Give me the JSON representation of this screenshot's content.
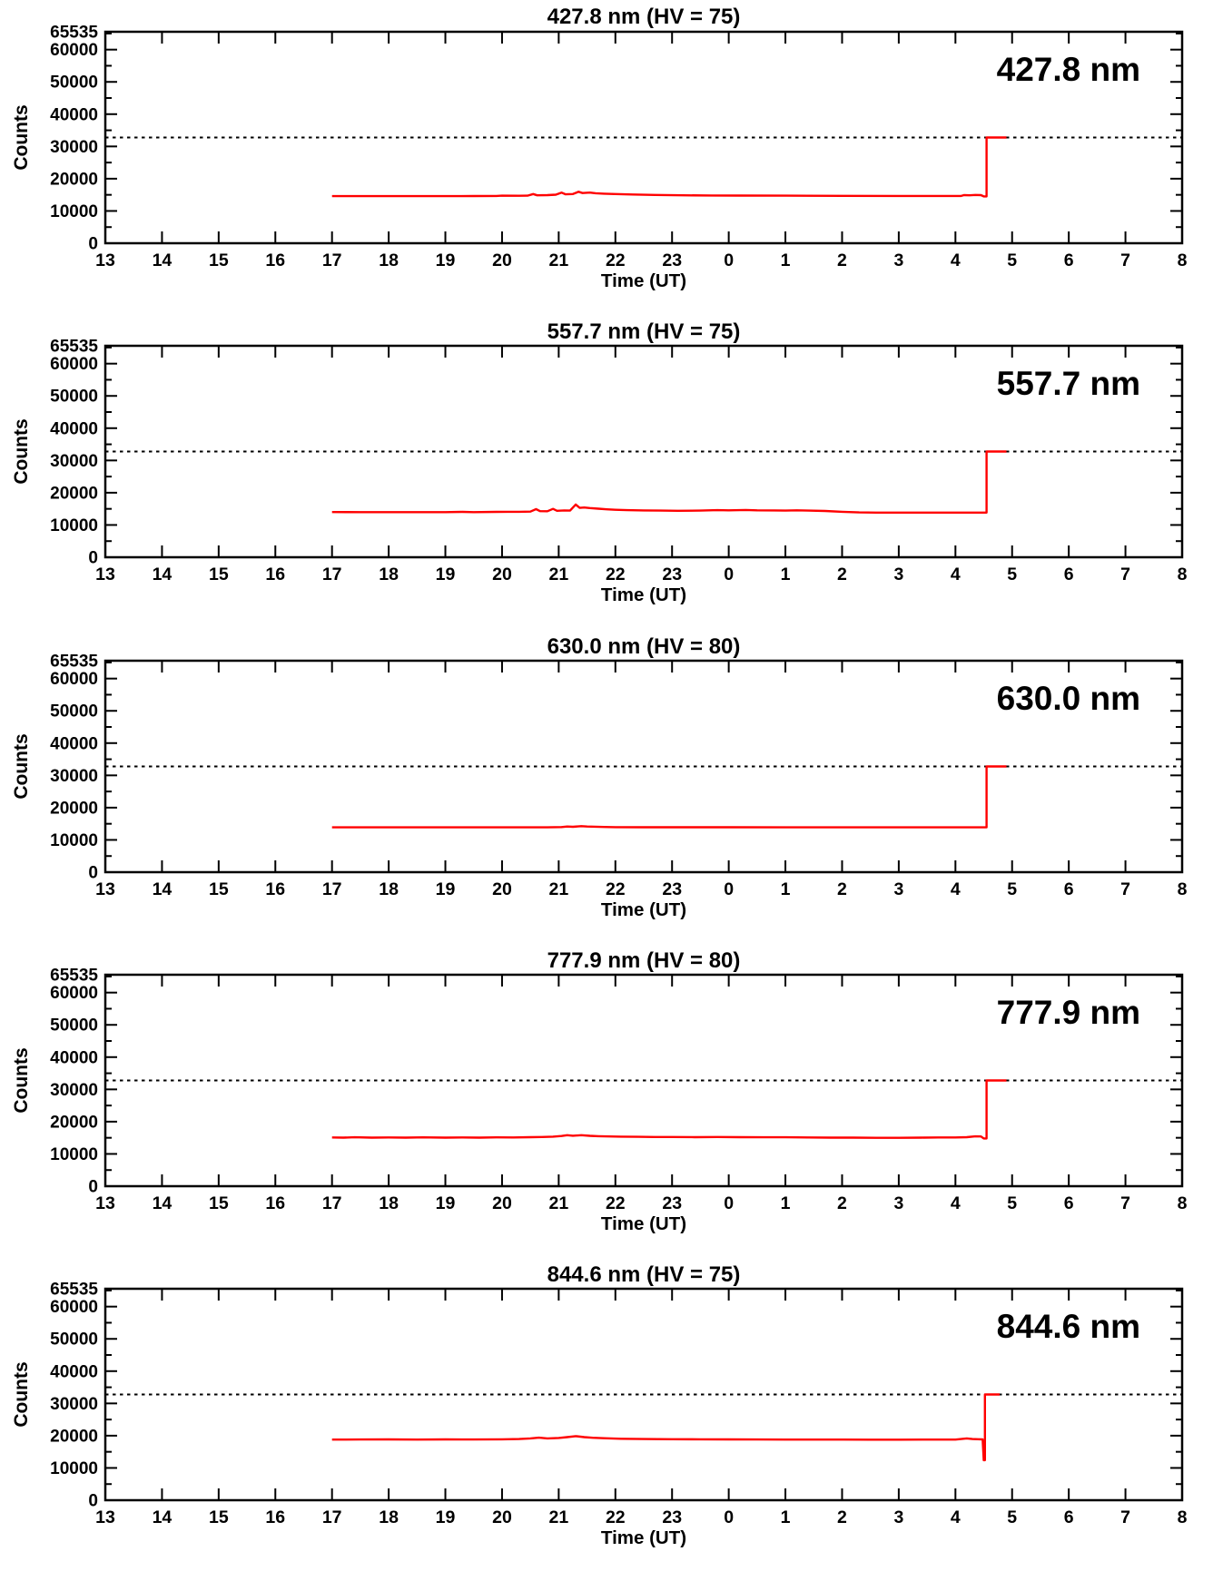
{
  "figure": {
    "description": "Five stacked photometer raw-count time-series panels",
    "background": "#ffffff",
    "axis_color": "#000000"
  },
  "chart_data": {
    "type": "line",
    "common": {
      "xlabel": "Time (UT)",
      "ylabel": "Counts",
      "ylim": [
        0,
        65535
      ],
      "y_major_ticks": [
        0,
        10000,
        20000,
        30000,
        40000,
        50000,
        60000,
        65535
      ],
      "y_major_tick_labels": [
        "0",
        "10000",
        "20000",
        "30000",
        "40000",
        "50000",
        "60000",
        "65535"
      ],
      "y_minor_step": 5000,
      "x_hours_range": [
        13,
        32
      ],
      "x_tick_hours": [
        13,
        14,
        15,
        16,
        17,
        18,
        19,
        20,
        21,
        22,
        23,
        24,
        25,
        26,
        27,
        28,
        29,
        30,
        31,
        32
      ],
      "x_tick_labels": [
        "13",
        "14",
        "15",
        "16",
        "17",
        "18",
        "19",
        "20",
        "21",
        "22",
        "23",
        "0",
        "1",
        "2",
        "3",
        "4",
        "5",
        "6",
        "7",
        "8"
      ],
      "x_unit_note": "UT hours; values >= 24 represent next-day 0-8 UT",
      "threshold_counts": 32768,
      "threshold_style": "dashed",
      "line_color": "#ff0000",
      "grid": false,
      "legend": "none"
    },
    "panels": [
      {
        "title": "427.8 nm (HV = 75)",
        "corner_label": "427.8 nm",
        "series": [
          [
            17.0,
            14600
          ],
          [
            17.5,
            14600
          ],
          [
            18.0,
            14600
          ],
          [
            18.5,
            14600
          ],
          [
            19.0,
            14600
          ],
          [
            19.5,
            14620
          ],
          [
            19.9,
            14650
          ],
          [
            20.0,
            14750
          ],
          [
            20.3,
            14700
          ],
          [
            20.45,
            14750
          ],
          [
            20.55,
            15250
          ],
          [
            20.62,
            14850
          ],
          [
            20.8,
            14900
          ],
          [
            20.95,
            15050
          ],
          [
            21.05,
            15700
          ],
          [
            21.12,
            15150
          ],
          [
            21.25,
            15250
          ],
          [
            21.35,
            15950
          ],
          [
            21.42,
            15550
          ],
          [
            21.55,
            15700
          ],
          [
            21.65,
            15500
          ],
          [
            21.8,
            15350
          ],
          [
            22.0,
            15250
          ],
          [
            22.3,
            15100
          ],
          [
            22.7,
            14950
          ],
          [
            23.2,
            14850
          ],
          [
            23.7,
            14800
          ],
          [
            24.2,
            14780
          ],
          [
            25.0,
            14730
          ],
          [
            26.0,
            14680
          ],
          [
            27.0,
            14650
          ],
          [
            27.8,
            14640
          ],
          [
            28.1,
            14660
          ],
          [
            28.15,
            14900
          ],
          [
            28.25,
            14850
          ],
          [
            28.35,
            14950
          ],
          [
            28.45,
            14900
          ],
          [
            28.5,
            14500
          ],
          [
            28.55,
            14500
          ],
          [
            28.55,
            32768
          ],
          [
            28.9,
            32768
          ]
        ]
      },
      {
        "title": "557.7 nm (HV = 75)",
        "corner_label": "557.7 nm",
        "series": [
          [
            17.0,
            14000
          ],
          [
            17.5,
            13990
          ],
          [
            18.0,
            13985
          ],
          [
            18.5,
            13980
          ],
          [
            19.0,
            13980
          ],
          [
            19.3,
            14050
          ],
          [
            19.5,
            13990
          ],
          [
            19.9,
            14050
          ],
          [
            20.1,
            14100
          ],
          [
            20.3,
            14080
          ],
          [
            20.5,
            14150
          ],
          [
            20.6,
            14900
          ],
          [
            20.67,
            14300
          ],
          [
            20.8,
            14250
          ],
          [
            20.9,
            15000
          ],
          [
            20.97,
            14400
          ],
          [
            21.1,
            14500
          ],
          [
            21.2,
            14450
          ],
          [
            21.3,
            16350
          ],
          [
            21.37,
            15300
          ],
          [
            21.45,
            15400
          ],
          [
            21.55,
            15250
          ],
          [
            21.7,
            15050
          ],
          [
            21.85,
            14850
          ],
          [
            22.0,
            14700
          ],
          [
            22.2,
            14600
          ],
          [
            22.5,
            14500
          ],
          [
            22.8,
            14450
          ],
          [
            23.1,
            14400
          ],
          [
            23.5,
            14450
          ],
          [
            23.8,
            14600
          ],
          [
            24.0,
            14550
          ],
          [
            24.3,
            14650
          ],
          [
            24.5,
            14550
          ],
          [
            24.8,
            14500
          ],
          [
            25.0,
            14450
          ],
          [
            25.2,
            14550
          ],
          [
            25.4,
            14450
          ],
          [
            25.7,
            14350
          ],
          [
            26.0,
            14100
          ],
          [
            26.3,
            13900
          ],
          [
            26.6,
            13850
          ],
          [
            27.0,
            13840
          ],
          [
            27.5,
            13840
          ],
          [
            28.0,
            13840
          ],
          [
            28.5,
            13840
          ],
          [
            28.55,
            13840
          ],
          [
            28.55,
            32768
          ],
          [
            28.9,
            32768
          ]
        ]
      },
      {
        "title": "630.0 nm (HV = 80)",
        "corner_label": "630.0 nm",
        "series": [
          [
            17.0,
            13900
          ],
          [
            18.0,
            13900
          ],
          [
            19.0,
            13900
          ],
          [
            20.0,
            13900
          ],
          [
            20.8,
            13900
          ],
          [
            21.05,
            13980
          ],
          [
            21.15,
            14150
          ],
          [
            21.25,
            14050
          ],
          [
            21.4,
            14250
          ],
          [
            21.5,
            14150
          ],
          [
            21.65,
            14100
          ],
          [
            21.8,
            14000
          ],
          [
            22.0,
            13960
          ],
          [
            22.5,
            13930
          ],
          [
            23.0,
            13920
          ],
          [
            24.0,
            13910
          ],
          [
            25.0,
            13905
          ],
          [
            26.0,
            13900
          ],
          [
            27.0,
            13900
          ],
          [
            28.0,
            13900
          ],
          [
            28.5,
            13900
          ],
          [
            28.55,
            13900
          ],
          [
            28.55,
            32768
          ],
          [
            28.9,
            32768
          ]
        ]
      },
      {
        "title": "777.9 nm (HV = 80)",
        "corner_label": "777.9 nm",
        "series": [
          [
            17.0,
            15100
          ],
          [
            17.2,
            15050
          ],
          [
            17.4,
            15150
          ],
          [
            17.7,
            15050
          ],
          [
            18.0,
            15100
          ],
          [
            18.3,
            15050
          ],
          [
            18.6,
            15120
          ],
          [
            19.0,
            15050
          ],
          [
            19.3,
            15100
          ],
          [
            19.6,
            15060
          ],
          [
            19.9,
            15120
          ],
          [
            20.2,
            15100
          ],
          [
            20.5,
            15200
          ],
          [
            20.7,
            15250
          ],
          [
            20.9,
            15350
          ],
          [
            21.05,
            15550
          ],
          [
            21.15,
            15800
          ],
          [
            21.25,
            15650
          ],
          [
            21.4,
            15800
          ],
          [
            21.55,
            15600
          ],
          [
            21.7,
            15500
          ],
          [
            21.9,
            15400
          ],
          [
            22.1,
            15350
          ],
          [
            22.4,
            15300
          ],
          [
            22.7,
            15250
          ],
          [
            23.0,
            15250
          ],
          [
            23.4,
            15200
          ],
          [
            23.8,
            15250
          ],
          [
            24.2,
            15200
          ],
          [
            24.6,
            15150
          ],
          [
            25.0,
            15150
          ],
          [
            25.4,
            15100
          ],
          [
            25.8,
            15050
          ],
          [
            26.2,
            15050
          ],
          [
            26.6,
            15000
          ],
          [
            27.0,
            15000
          ],
          [
            27.4,
            15050
          ],
          [
            27.7,
            15100
          ],
          [
            28.0,
            15100
          ],
          [
            28.2,
            15200
          ],
          [
            28.35,
            15450
          ],
          [
            28.45,
            15400
          ],
          [
            28.5,
            14800
          ],
          [
            28.55,
            14800
          ],
          [
            28.55,
            32768
          ],
          [
            28.9,
            32768
          ]
        ]
      },
      {
        "title": "844.6 nm (HV = 75)",
        "corner_label": "844.6 nm",
        "series": [
          [
            17.0,
            18800
          ],
          [
            17.5,
            18820
          ],
          [
            18.0,
            18850
          ],
          [
            18.5,
            18800
          ],
          [
            19.0,
            18850
          ],
          [
            19.5,
            18820
          ],
          [
            20.0,
            18870
          ],
          [
            20.3,
            18950
          ],
          [
            20.5,
            19150
          ],
          [
            20.65,
            19380
          ],
          [
            20.8,
            19150
          ],
          [
            21.0,
            19300
          ],
          [
            21.15,
            19550
          ],
          [
            21.3,
            19850
          ],
          [
            21.45,
            19550
          ],
          [
            21.6,
            19350
          ],
          [
            21.8,
            19200
          ],
          [
            22.1,
            19050
          ],
          [
            22.5,
            18950
          ],
          [
            23.0,
            18900
          ],
          [
            23.5,
            18870
          ],
          [
            24.0,
            18850
          ],
          [
            24.5,
            18830
          ],
          [
            25.0,
            18800
          ],
          [
            25.5,
            18800
          ],
          [
            26.0,
            18780
          ],
          [
            26.5,
            18760
          ],
          [
            27.0,
            18750
          ],
          [
            27.5,
            18780
          ],
          [
            28.0,
            18800
          ],
          [
            28.2,
            19150
          ],
          [
            28.3,
            18950
          ],
          [
            28.4,
            18900
          ],
          [
            28.48,
            18850
          ],
          [
            28.5,
            12400
          ],
          [
            28.52,
            12400
          ],
          [
            28.52,
            32768
          ],
          [
            28.78,
            32768
          ]
        ]
      }
    ]
  }
}
